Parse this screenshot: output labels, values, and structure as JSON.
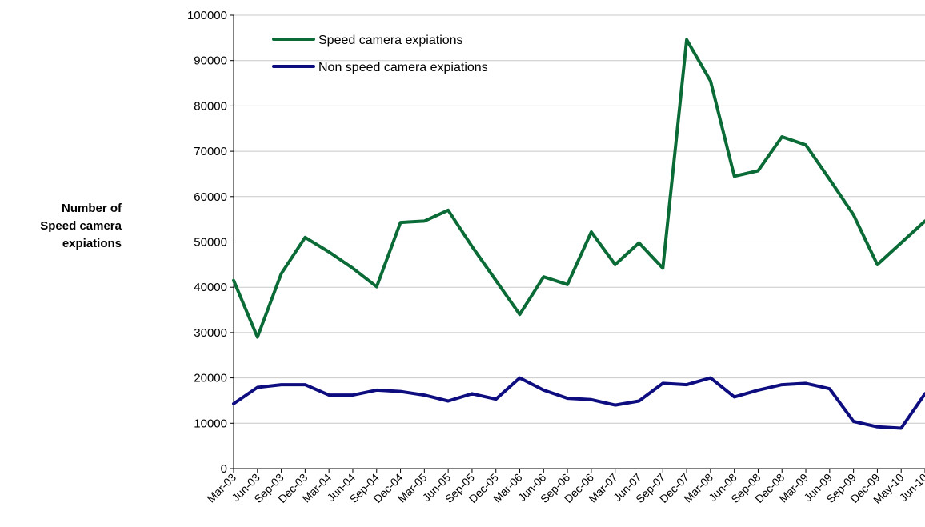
{
  "chart_data": {
    "type": "line",
    "title": "",
    "xlabel": "",
    "ylabel_lines": [
      "Number of",
      "Speed camera",
      "expiations"
    ],
    "ylim": [
      0,
      100000
    ],
    "yticks": [
      0,
      10000,
      20000,
      30000,
      40000,
      50000,
      60000,
      70000,
      80000,
      90000,
      100000
    ],
    "grid": "horizontal",
    "legend_position": "top-left",
    "categories": [
      "Mar-03",
      "Jun-03",
      "Sep-03",
      "Dec-03",
      "Mar-04",
      "Jun-04",
      "Sep-04",
      "Dec-04",
      "Mar-05",
      "Jun-05",
      "Sep-05",
      "Dec-05",
      "Mar-06",
      "Jun-06",
      "Sep-06",
      "Dec-06",
      "Mar-07",
      "Jun-07",
      "Sep-07",
      "Dec-07",
      "Mar-08",
      "Jun-08",
      "Sep-08",
      "Dec-08",
      "Mar-09",
      "Jun-09",
      "Sep-09",
      "Dec-09",
      "May-10",
      "Jun-10"
    ],
    "series": [
      {
        "name": "Speed camera expiations",
        "color": "#0a6b36",
        "values": [
          41500,
          29000,
          43000,
          51000,
          47800,
          44200,
          40100,
          54300,
          54600,
          57000,
          49000,
          41500,
          34000,
          42300,
          40600,
          52200,
          45000,
          49800,
          44200,
          94600,
          85500,
          64500,
          65700,
          73200,
          71400,
          63800,
          56000,
          45000,
          49800,
          54600
        ]
      },
      {
        "name": "Non speed camera expiations",
        "color": "#0d0d80",
        "values": [
          14300,
          17900,
          18500,
          18500,
          16200,
          16200,
          17300,
          17000,
          16200,
          14900,
          16500,
          15300,
          20000,
          17300,
          15500,
          15200,
          14000,
          14900,
          18800,
          18500,
          20000,
          15800,
          17300,
          18500,
          18800,
          17600,
          10400,
          9200,
          8900,
          16500
        ]
      }
    ]
  }
}
